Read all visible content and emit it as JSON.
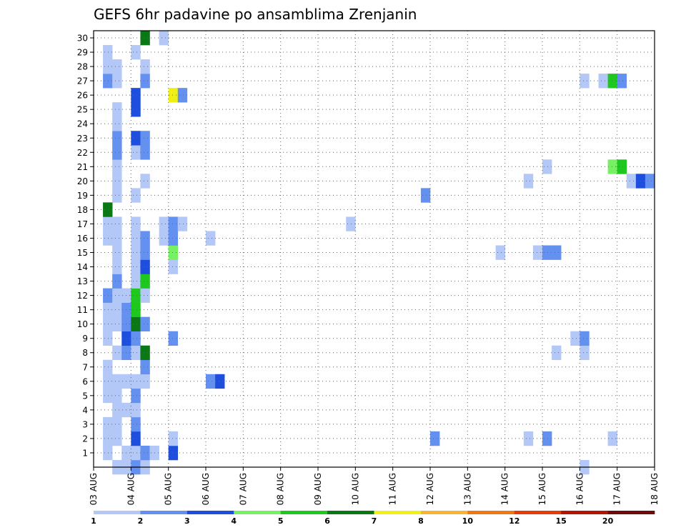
{
  "chart_data": {
    "type": "heatmap",
    "title": "GEFS 6hr padavine po ansamblima Zrenjanin",
    "xlabel": "",
    "ylabel": "",
    "x_start": "03 AUG 00Z",
    "x_end": "18 AUG 00Z",
    "x_step_hours": 6,
    "x_tick_labels": [
      "03 AUG",
      "04 AUG",
      "05 AUG",
      "06 AUG",
      "07 AUG",
      "08 AUG",
      "09 AUG",
      "10 AUG",
      "11 AUG",
      "12 AUG",
      "13 AUG",
      "14 AUG",
      "15 AUG",
      "16 AUG",
      "17 AUG",
      "18 AUG"
    ],
    "y_tick_labels": [
      1,
      2,
      3,
      4,
      5,
      6,
      7,
      8,
      9,
      10,
      11,
      12,
      13,
      14,
      15,
      16,
      17,
      18,
      19,
      20,
      21,
      22,
      23,
      24,
      25,
      26,
      27,
      28,
      29,
      30
    ],
    "ylim": [
      0,
      30
    ],
    "grid": true,
    "legend": {
      "placement": "bottom",
      "labels": [
        "1",
        "2",
        "3",
        "4",
        "5",
        "6",
        "7",
        "8",
        "10",
        "12",
        "15",
        "20"
      ],
      "colors": [
        "#b4c8f8",
        "#6490f0",
        "#1e4ede",
        "#78f064",
        "#1ec81e",
        "#0a7814",
        "#f0f014",
        "#f8b432",
        "#f07814",
        "#e63c0a",
        "#b41400",
        "#6e0a0a"
      ]
    },
    "cells": [
      [
        1,
        1,
        1
      ],
      [
        1,
        2,
        1
      ],
      [
        1,
        3,
        1
      ],
      [
        1,
        5,
        1
      ],
      [
        1,
        6,
        1
      ],
      [
        1,
        7,
        1
      ],
      [
        1,
        9,
        1
      ],
      [
        1,
        10,
        1
      ],
      [
        1,
        11,
        1
      ],
      [
        1,
        12,
        2
      ],
      [
        1,
        16,
        1
      ],
      [
        1,
        17,
        1
      ],
      [
        1,
        18,
        6
      ],
      [
        1,
        27,
        2
      ],
      [
        1,
        28,
        1
      ],
      [
        1,
        29,
        1
      ],
      [
        2,
        0,
        1
      ],
      [
        2,
        2,
        1
      ],
      [
        2,
        3,
        1
      ],
      [
        2,
        4,
        1
      ],
      [
        2,
        5,
        1
      ],
      [
        2,
        6,
        1
      ],
      [
        2,
        8,
        1
      ],
      [
        2,
        10,
        1
      ],
      [
        2,
        11,
        1
      ],
      [
        2,
        12,
        1
      ],
      [
        2,
        13,
        2
      ],
      [
        2,
        14,
        1
      ],
      [
        2,
        15,
        1
      ],
      [
        2,
        16,
        1
      ],
      [
        2,
        17,
        1
      ],
      [
        2,
        19,
        1
      ],
      [
        2,
        20,
        1
      ],
      [
        2,
        21,
        1
      ],
      [
        2,
        22,
        2
      ],
      [
        2,
        23,
        2
      ],
      [
        2,
        24,
        1
      ],
      [
        2,
        25,
        1
      ],
      [
        2,
        27,
        1
      ],
      [
        2,
        28,
        1
      ],
      [
        3,
        0,
        1
      ],
      [
        3,
        1,
        1
      ],
      [
        3,
        4,
        1
      ],
      [
        3,
        6,
        1
      ],
      [
        3,
        8,
        2
      ],
      [
        3,
        9,
        3
      ],
      [
        3,
        10,
        2
      ],
      [
        3,
        11,
        2
      ],
      [
        3,
        12,
        1
      ],
      [
        4,
        0,
        2
      ],
      [
        4,
        1,
        1
      ],
      [
        4,
        2,
        3
      ],
      [
        4,
        3,
        2
      ],
      [
        4,
        4,
        1
      ],
      [
        4,
        5,
        2
      ],
      [
        4,
        6,
        1
      ],
      [
        4,
        8,
        1
      ],
      [
        4,
        9,
        2
      ],
      [
        4,
        10,
        6
      ],
      [
        4,
        11,
        5
      ],
      [
        4,
        12,
        5
      ],
      [
        4,
        13,
        1
      ],
      [
        4,
        14,
        1
      ],
      [
        4,
        15,
        1
      ],
      [
        4,
        16,
        1
      ],
      [
        4,
        17,
        1
      ],
      [
        4,
        19,
        1
      ],
      [
        4,
        22,
        1
      ],
      [
        4,
        23,
        3
      ],
      [
        4,
        25,
        3
      ],
      [
        4,
        26,
        3
      ],
      [
        4,
        29,
        1
      ],
      [
        5,
        0,
        1
      ],
      [
        5,
        1,
        2
      ],
      [
        5,
        6,
        1
      ],
      [
        5,
        7,
        2
      ],
      [
        5,
        8,
        6
      ],
      [
        5,
        10,
        2
      ],
      [
        5,
        12,
        1
      ],
      [
        5,
        13,
        5
      ],
      [
        5,
        14,
        3
      ],
      [
        5,
        15,
        2
      ],
      [
        5,
        16,
        2
      ],
      [
        5,
        20,
        1
      ],
      [
        5,
        22,
        2
      ],
      [
        5,
        23,
        2
      ],
      [
        5,
        27,
        2
      ],
      [
        5,
        28,
        1
      ],
      [
        5,
        30,
        6
      ],
      [
        6,
        1,
        1
      ],
      [
        7,
        16,
        1
      ],
      [
        7,
        17,
        1
      ],
      [
        7,
        30,
        1
      ],
      [
        8,
        1,
        3
      ],
      [
        8,
        2,
        1
      ],
      [
        8,
        9,
        2
      ],
      [
        8,
        14,
        1
      ],
      [
        8,
        15,
        4
      ],
      [
        8,
        16,
        2
      ],
      [
        8,
        17,
        2
      ],
      [
        8,
        26,
        7
      ],
      [
        9,
        17,
        1
      ],
      [
        9,
        26,
        2
      ],
      [
        12,
        6,
        2
      ],
      [
        12,
        16,
        1
      ],
      [
        13,
        6,
        3
      ],
      [
        27,
        17,
        1
      ],
      [
        35,
        19,
        2
      ],
      [
        36,
        2,
        2
      ],
      [
        43,
        15,
        1
      ],
      [
        46,
        2,
        1
      ],
      [
        46,
        20,
        1
      ],
      [
        47,
        15,
        1
      ],
      [
        48,
        2,
        2
      ],
      [
        48,
        15,
        2
      ],
      [
        48,
        21,
        1
      ],
      [
        49,
        8,
        1
      ],
      [
        49,
        15,
        2
      ],
      [
        51,
        9,
        1
      ],
      [
        52,
        0,
        1
      ],
      [
        52,
        8,
        1
      ],
      [
        52,
        9,
        2
      ],
      [
        52,
        27,
        1
      ],
      [
        54,
        27,
        1
      ],
      [
        55,
        2,
        1
      ],
      [
        55,
        21,
        4
      ],
      [
        55,
        27,
        5
      ],
      [
        56,
        21,
        5
      ],
      [
        56,
        27,
        2
      ],
      [
        57,
        20,
        1
      ],
      [
        58,
        20,
        3
      ],
      [
        59,
        20,
        2
      ]
    ]
  }
}
